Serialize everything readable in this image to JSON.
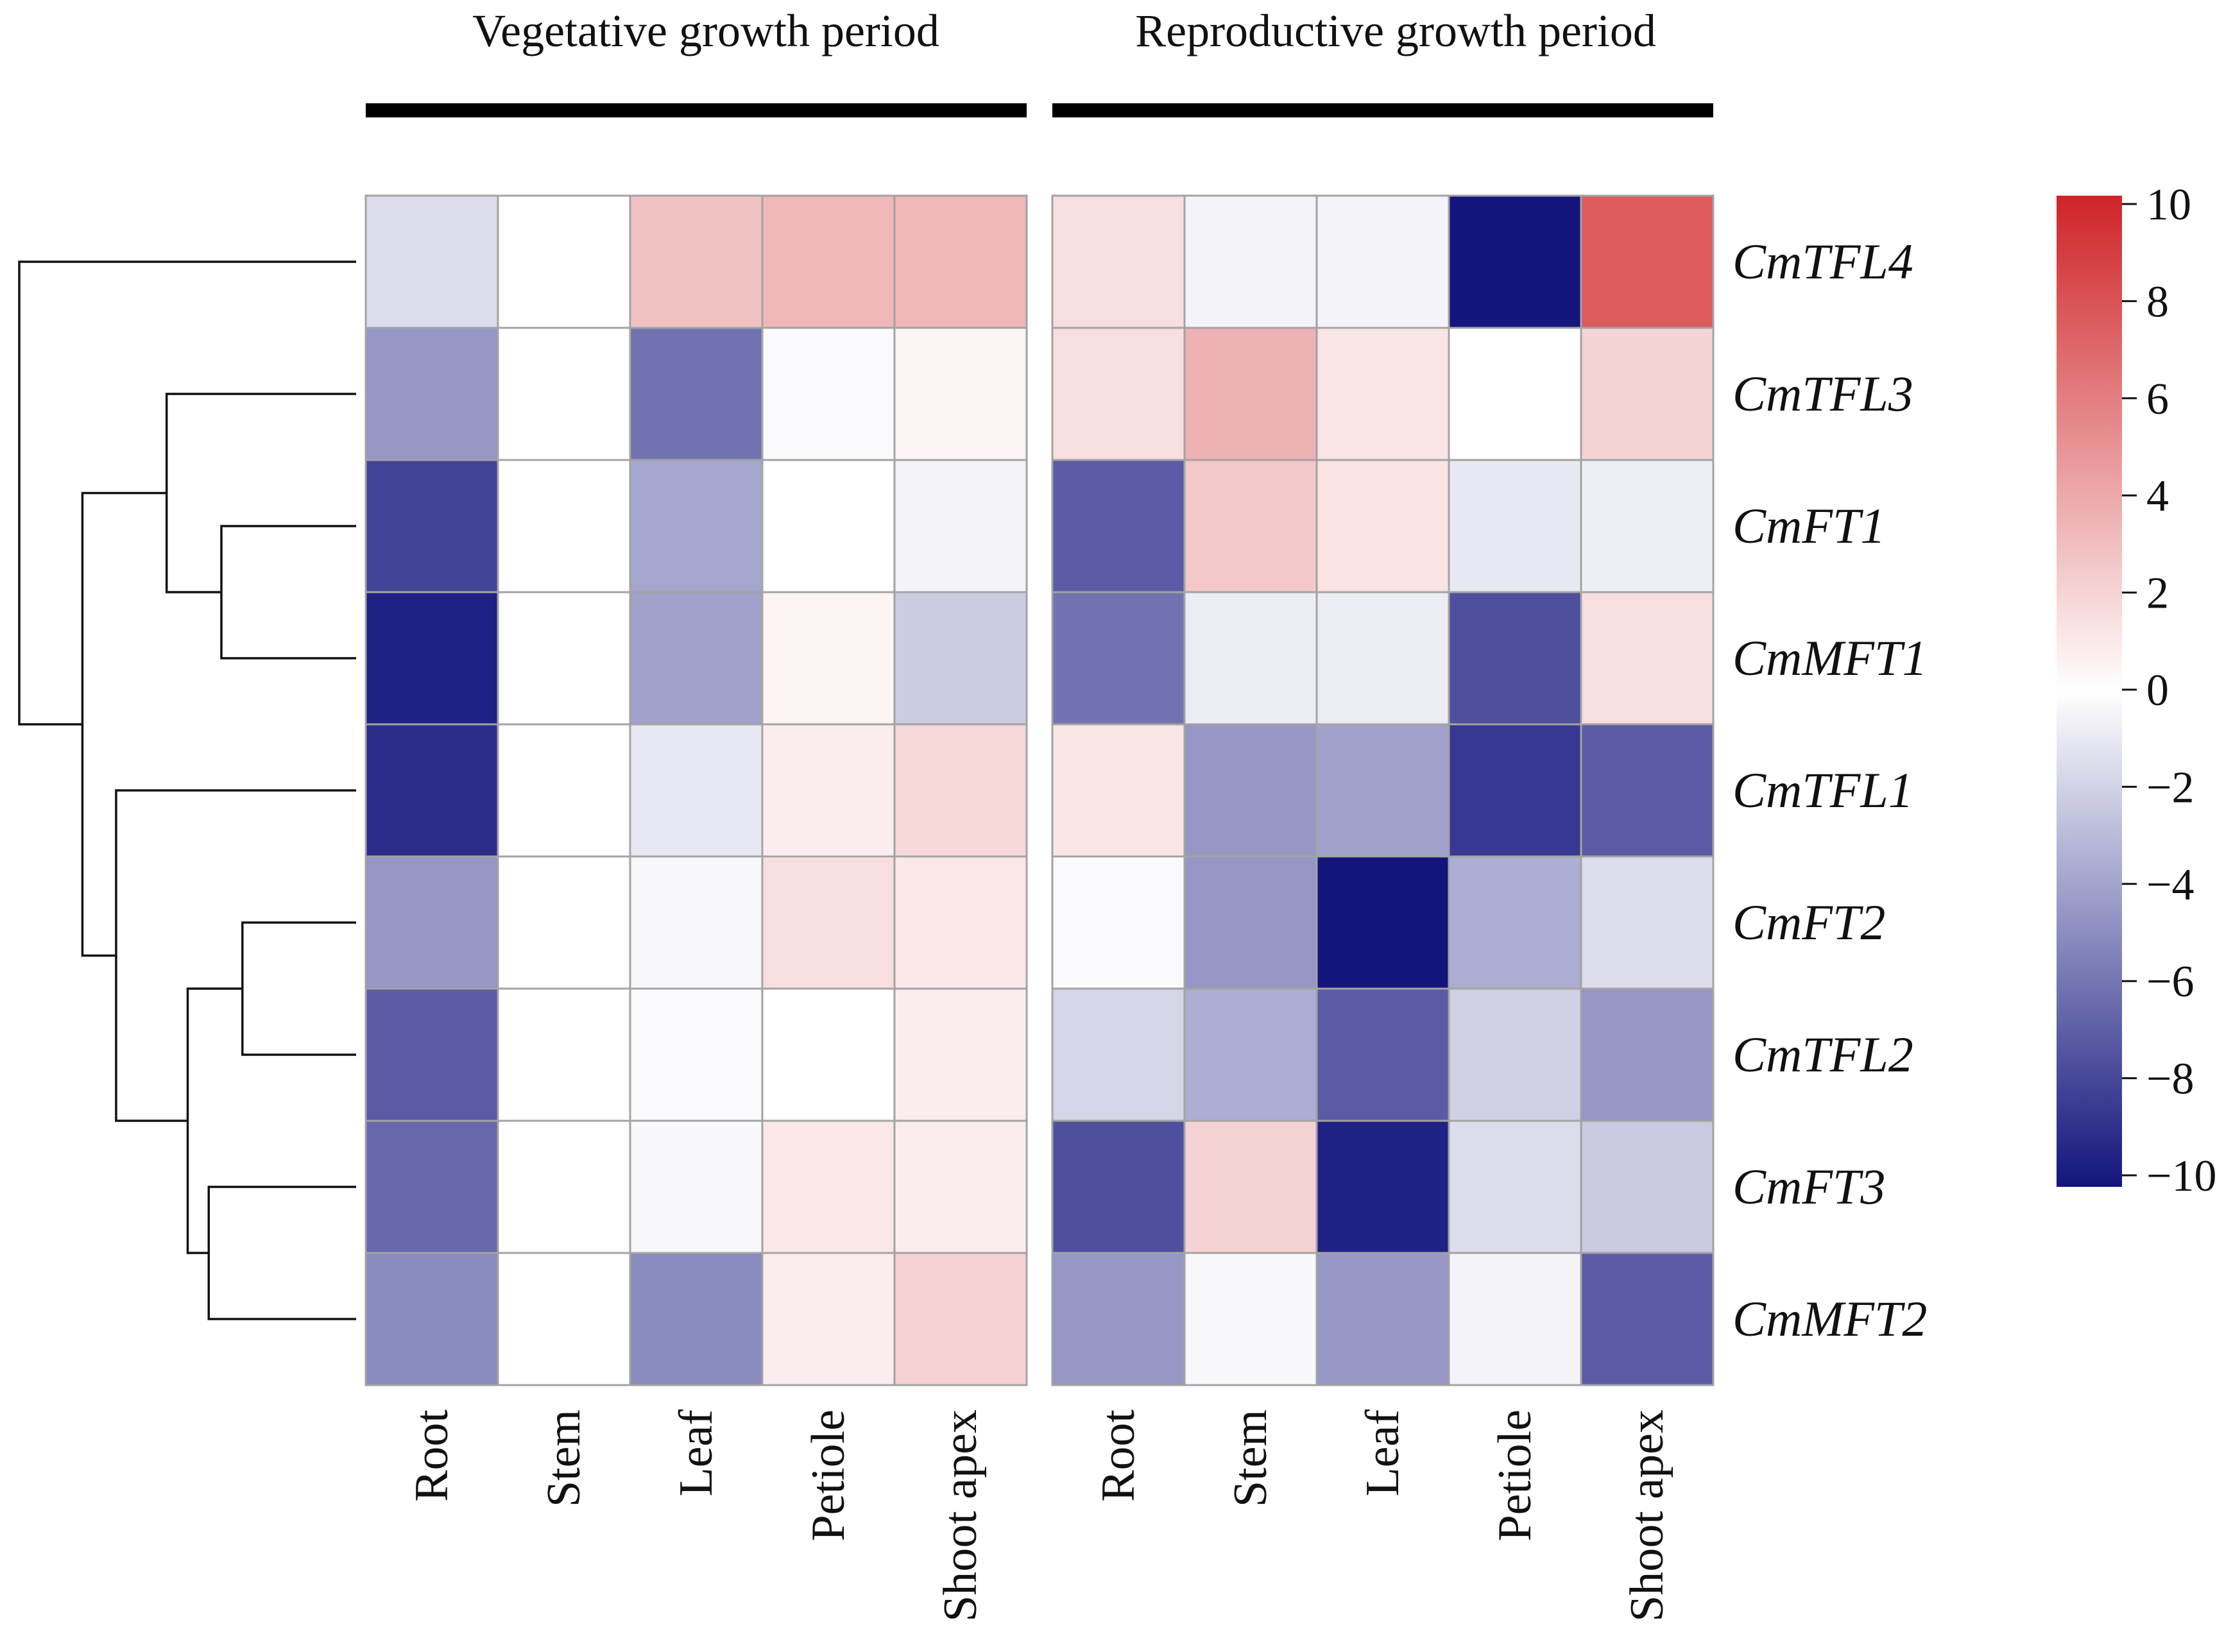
{
  "chart_data": {
    "type": "heatmap",
    "title": "",
    "groups": [
      {
        "name": "Vegetative growth period",
        "columns": [
          "Root",
          "Stem",
          "Leaf",
          "Petiole",
          "Shoot apex"
        ]
      },
      {
        "name": "Reproductive growth period",
        "columns": [
          "Root",
          "Stem",
          "Leaf",
          "Petiole",
          "Shoot apex"
        ]
      }
    ],
    "rows": [
      "CmTFL4",
      "CmTFL3",
      "CmFT1",
      "CmMFT1",
      "CmTFL1",
      "CmFT2",
      "CmTFL2",
      "CmFT3",
      "CmMFT2"
    ],
    "values": [
      [
        -1.5,
        0.0,
        2.8,
        3.3,
        3.3,
        1.5,
        -0.5,
        -0.5,
        -10.0,
        7.5
      ],
      [
        -4.5,
        0.0,
        -6.0,
        -0.2,
        0.5,
        1.5,
        3.5,
        1.2,
        0.0,
        2.0
      ],
      [
        -8.0,
        0.0,
        -3.8,
        0.0,
        -0.5,
        -7.0,
        2.5,
        1.3,
        -1.0,
        -0.7
      ],
      [
        -9.5,
        0.0,
        -4.0,
        0.5,
        -2.2,
        -6.0,
        -0.8,
        -0.8,
        -7.5,
        1.5
      ],
      [
        -9.0,
        0.0,
        -1.0,
        0.8,
        1.8,
        1.2,
        -4.5,
        -4.0,
        -8.5,
        -7.0
      ],
      [
        -4.5,
        0.0,
        -0.3,
        1.5,
        1.1,
        -0.2,
        -4.5,
        -10.0,
        -3.5,
        -1.5
      ],
      [
        -7.0,
        0.0,
        -0.2,
        0.0,
        0.8,
        -1.8,
        -3.5,
        -7.0,
        -2.0,
        -4.5
      ],
      [
        -6.5,
        0.0,
        -0.3,
        1.1,
        0.8,
        -7.5,
        2.0,
        -9.5,
        -1.5,
        -2.3
      ],
      [
        -5.0,
        0.0,
        -5.0,
        0.8,
        2.1,
        -4.5,
        -0.3,
        -4.5,
        -0.5,
        -7.0
      ]
    ],
    "color_scale": {
      "min": -10,
      "max": 10,
      "low": "#13157d",
      "mid": "#ffffff",
      "high": "#cf2428"
    },
    "legend_ticks": [
      "10",
      "8",
      "6",
      "4",
      "2",
      "0",
      "−2",
      "−4",
      "−6",
      "−8",
      "−10"
    ],
    "legend_position": "right",
    "dendrogram": {
      "side": "left",
      "leaf_order": [
        "CmTFL4",
        "CmTFL3",
        "CmFT1",
        "CmMFT1",
        "CmTFL1",
        "CmFT2",
        "CmTFL2",
        "CmFT3",
        "CmMFT2"
      ],
      "merges": [
        {
          "a": 2,
          "b": 3,
          "height": 3.2
        },
        {
          "a": 1,
          "b": 9,
          "height": 4.5
        },
        {
          "a": 5,
          "b": 6,
          "height": 2.7
        },
        {
          "a": 7,
          "b": 8,
          "height": 3.5
        },
        {
          "a": 11,
          "b": 12,
          "height": 4.0
        },
        {
          "a": 4,
          "b": 13,
          "height": 5.7
        },
        {
          "a": 10,
          "b": 14,
          "height": 6.5
        },
        {
          "a": 0,
          "b": 15,
          "height": 8.0
        }
      ]
    }
  }
}
